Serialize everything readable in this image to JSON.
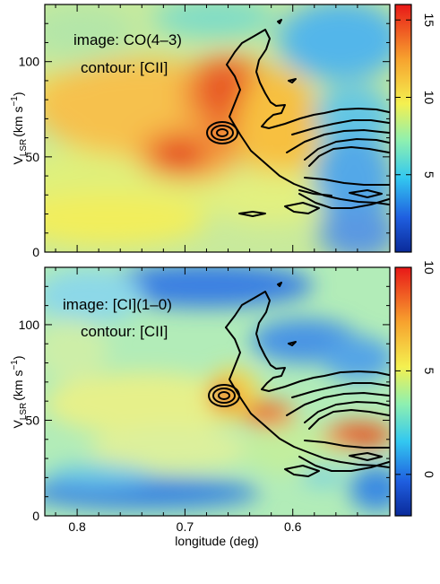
{
  "chart_data": [
    {
      "type": "heatmap",
      "image_label": "image: CO(4–3)",
      "contour_label": "contour: [CII]",
      "xlabel": "longitude (deg)",
      "ylabel_main": "V",
      "ylabel_sub": "LSR",
      "ylabel_unit": "(km s",
      "ylabel_exp": "−1",
      "ylabel_close": ")",
      "xlim": [
        0.83,
        0.51
      ],
      "ylim": [
        0,
        130
      ],
      "xticks": [
        {
          "value": 0.8,
          "label": "0.8"
        },
        {
          "value": 0.7,
          "label": "0.7"
        },
        {
          "value": 0.6,
          "label": "0.6"
        }
      ],
      "yticks": [
        {
          "value": 0,
          "label": "0"
        },
        {
          "value": 50,
          "label": "50"
        },
        {
          "value": 100,
          "label": "100"
        }
      ],
      "colorbar": {
        "range": [
          0,
          16
        ],
        "ticks": [
          {
            "value": 5,
            "label": "5"
          },
          {
            "value": 10,
            "label": "10"
          },
          {
            "value": 15,
            "label": "15"
          }
        ]
      },
      "intensity_peaks": [
        {
          "l": 0.7,
          "v": 51,
          "value": 15.5
        },
        {
          "l": 0.685,
          "v": 80,
          "value": 14
        },
        {
          "l": 0.76,
          "v": 82,
          "value": 11
        },
        {
          "l": 0.66,
          "v": 62,
          "value": 13
        }
      ],
      "grid": false
    },
    {
      "type": "heatmap",
      "image_label": "image: [CI](1–0)",
      "contour_label": "contour: [CII]",
      "xlabel": "longitude (deg)",
      "ylabel_main": "V",
      "ylabel_sub": "LSR",
      "ylabel_unit": "(km s",
      "ylabel_exp": "−1",
      "ylabel_close": ")",
      "xlim": [
        0.83,
        0.51
      ],
      "ylim": [
        0,
        130
      ],
      "xticks": [
        {
          "value": 0.8,
          "label": "0.8"
        },
        {
          "value": 0.7,
          "label": "0.7"
        },
        {
          "value": 0.6,
          "label": "0.6"
        }
      ],
      "yticks": [
        {
          "value": 0,
          "label": "0"
        },
        {
          "value": 50,
          "label": "50"
        },
        {
          "value": 100,
          "label": "100"
        }
      ],
      "colorbar": {
        "range": [
          -2,
          10
        ],
        "ticks": [
          {
            "value": 0,
            "label": "0"
          },
          {
            "value": 5,
            "label": "5"
          },
          {
            "value": 10,
            "label": "10"
          }
        ]
      },
      "intensity_peaks": [
        {
          "l": 0.66,
          "v": 61,
          "value": 10
        },
        {
          "l": 0.61,
          "v": 55,
          "value": 8
        },
        {
          "l": 0.545,
          "v": 43,
          "value": 8.5
        }
      ],
      "grid": false
    }
  ]
}
